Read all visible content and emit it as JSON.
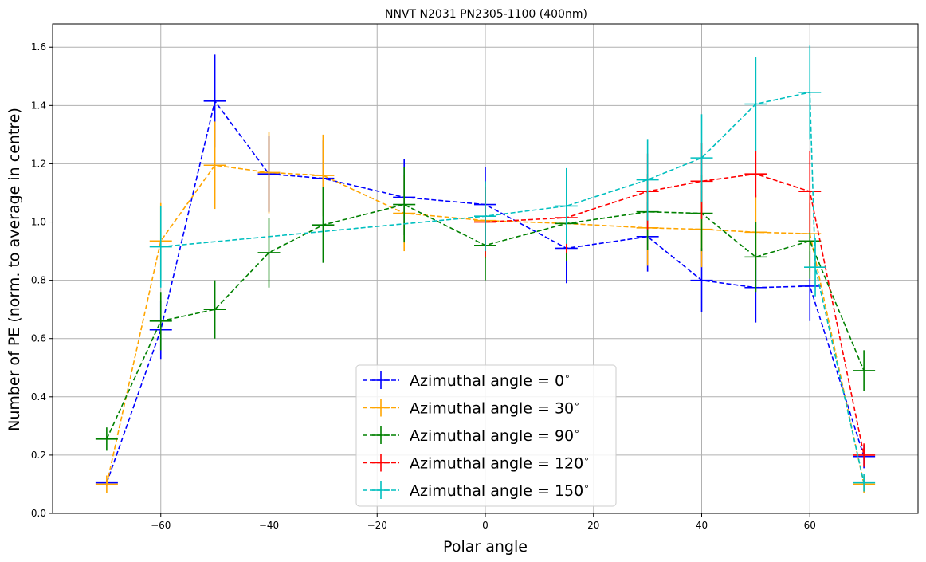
{
  "chart_data": {
    "type": "line",
    "title": "NNVT N2031 PN2305-1100 (400nm)",
    "xlabel": "Polar angle",
    "ylabel": "Number of PE (norm. to average in centre)",
    "xlim": [
      -80,
      80
    ],
    "ylim": [
      0,
      1.68
    ],
    "xticks": [
      -60,
      -40,
      -20,
      0,
      20,
      40,
      60
    ],
    "yticks": [
      0.0,
      0.2,
      0.4,
      0.6,
      0.8,
      1.0,
      1.2,
      1.4,
      1.6
    ],
    "grid": true,
    "legend_position": "lower center",
    "series": [
      {
        "name": "Azimuthal angle = 0$^\\circ$",
        "legend_label": "Azimuthal angle = 0",
        "color": "#0000ff",
        "line_style": "dashed",
        "x": [
          -70,
          -60,
          -50,
          -40,
          -30,
          -15,
          0,
          15,
          30,
          40,
          50,
          60,
          70
        ],
        "y": [
          0.105,
          0.63,
          1.415,
          1.165,
          1.15,
          1.085,
          1.06,
          0.91,
          0.95,
          0.8,
          0.775,
          0.78,
          0.195
        ],
        "yerr": [
          0.01,
          0.1,
          0.16,
          0.13,
          0.13,
          0.13,
          0.13,
          0.12,
          0.12,
          0.11,
          0.12,
          0.12,
          0.04
        ]
      },
      {
        "name": "Azimuthal angle = 30$^\\circ$",
        "legend_label": "Azimuthal angle = 30",
        "color": "#ffa500",
        "line_style": "dashed",
        "x": [
          -70,
          -60,
          -50,
          -40,
          -30,
          -15,
          0,
          15,
          30,
          40,
          50,
          60,
          70
        ],
        "y": [
          0.1,
          0.935,
          1.195,
          1.17,
          1.16,
          1.03,
          1.005,
          0.995,
          0.98,
          0.975,
          0.965,
          0.96,
          0.1
        ],
        "yerr": [
          0.03,
          0.13,
          0.15,
          0.14,
          0.14,
          0.13,
          0.13,
          0.13,
          0.13,
          0.13,
          0.13,
          0.13,
          0.03
        ]
      },
      {
        "name": "Azimuthal angle = 90$^\\circ$",
        "legend_label": "Azimuthal angle = 90",
        "color": "#008000",
        "line_style": "dashed",
        "x": [
          -70,
          -60,
          -50,
          -40,
          -30,
          -15,
          0,
          15,
          30,
          40,
          50,
          60,
          70
        ],
        "y": [
          0.255,
          0.66,
          0.7,
          0.895,
          0.99,
          1.06,
          0.92,
          0.995,
          1.035,
          1.03,
          0.88,
          0.935,
          0.49
        ],
        "yerr": [
          0.04,
          0.1,
          0.1,
          0.12,
          0.13,
          0.13,
          0.12,
          0.13,
          0.13,
          0.13,
          0.12,
          0.13,
          0.07
        ]
      },
      {
        "name": "Azimuthal angle = 120$^\\circ$",
        "legend_label": "Azimuthal angle = 120",
        "color": "#ff0000",
        "line_style": "dashed",
        "x": [
          0,
          15,
          30,
          40,
          50,
          60,
          70
        ],
        "y": [
          1.0,
          1.015,
          1.105,
          1.14,
          1.165,
          1.105,
          0.2
        ],
        "yerr": [
          0.12,
          0.12,
          0.13,
          0.13,
          0.08,
          0.14,
          0.04
        ]
      },
      {
        "name": "Azimuthal angle = 150$^\\circ$",
        "legend_label": "Azimuthal angle = 150",
        "color": "#00bfbf",
        "line_style": "dashed",
        "x": [
          -60,
          0,
          15,
          30,
          40,
          50,
          60,
          61,
          70
        ],
        "y": [
          0.915,
          1.02,
          1.055,
          1.145,
          1.22,
          1.405,
          1.445,
          0.845,
          0.105
        ],
        "yerr": [
          0.14,
          0.12,
          0.13,
          0.14,
          0.15,
          0.16,
          0.16,
          0.1,
          0.03
        ]
      }
    ]
  }
}
